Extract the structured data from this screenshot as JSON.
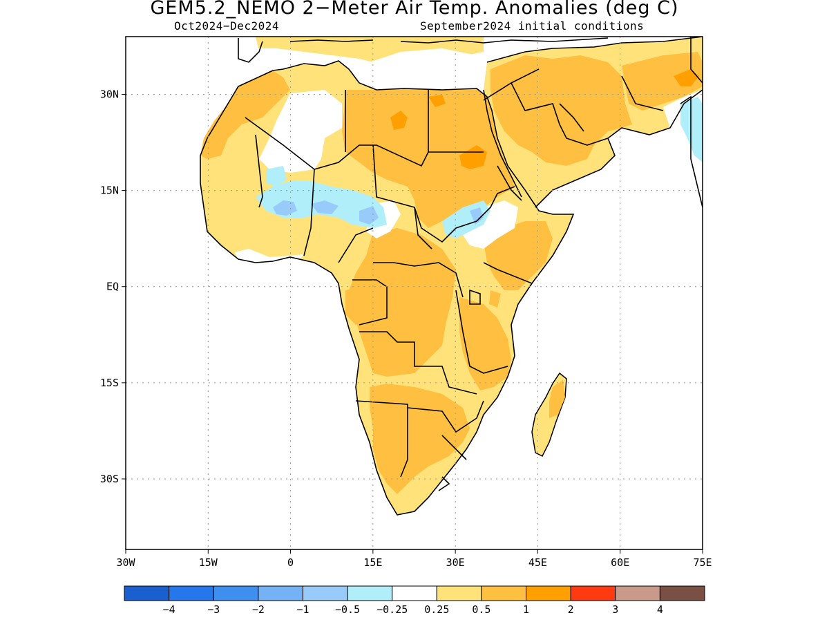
{
  "header": {
    "title": "GEM5.2_NEMO 2−Meter Air Temp. Anomalies (deg C)",
    "period": "Oct2024−Dec2024",
    "init": "September2024 initial conditions"
  },
  "map": {
    "lon_range": [
      -30,
      75
    ],
    "lat_range": [
      -41,
      39
    ],
    "grid": "dotted",
    "lat_ticks": [
      {
        "value": 30,
        "label": "30N"
      },
      {
        "value": 15,
        "label": "15N"
      },
      {
        "value": 0,
        "label": "EQ"
      },
      {
        "value": -15,
        "label": "15S"
      },
      {
        "value": -30,
        "label": "30S"
      }
    ],
    "lon_ticks": [
      {
        "value": -30,
        "label": "30W"
      },
      {
        "value": -15,
        "label": "15W"
      },
      {
        "value": 0,
        "label": "0"
      },
      {
        "value": 15,
        "label": "15E"
      },
      {
        "value": 30,
        "label": "30E"
      },
      {
        "value": 45,
        "label": "45E"
      },
      {
        "value": 60,
        "label": "60E"
      },
      {
        "value": 75,
        "label": "75E"
      }
    ]
  },
  "colorbar": {
    "colors": [
      "#1a5fcf",
      "#2577eb",
      "#3f8ff1",
      "#74b2f5",
      "#98cbf9",
      "#b0eefa",
      "#ffffff",
      "#ffe37a",
      "#ffbf40",
      "#ff9f00",
      "#ff3a10",
      "#c99a8a",
      "#7a4f44"
    ],
    "labels": [
      "−4",
      "−3",
      "−2",
      "−1",
      "−0.5",
      "−0.25",
      "0.25",
      "0.5",
      "1",
      "2",
      "3",
      "4"
    ]
  }
}
